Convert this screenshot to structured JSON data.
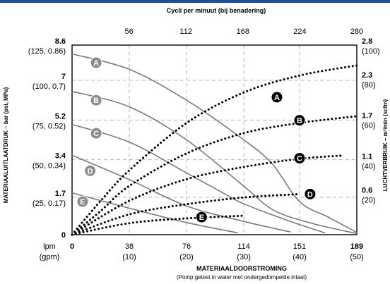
{
  "chart_data": {
    "type": "line",
    "top_axis": {
      "label": "Cycli per minuut (bij benadering)",
      "ticks": [
        "56",
        "112",
        "168",
        "224",
        "280"
      ]
    },
    "x_axis": {
      "label": "MATERIAALDOORSTROMING",
      "sublabel": "(Pomp getest in water met ondergedompelde inlaat)",
      "unit_primary": "lpm",
      "unit_secondary": "(gpm)",
      "range": [
        0,
        189
      ],
      "ticks": [
        {
          "value": 0,
          "primary": "0",
          "secondary": ""
        },
        {
          "value": 38,
          "primary": "38",
          "secondary": "(10)"
        },
        {
          "value": 76,
          "primary": "76",
          "secondary": "(20)"
        },
        {
          "value": 114,
          "primary": "114",
          "secondary": "(30)"
        },
        {
          "value": 151,
          "primary": "151",
          "secondary": "(40)"
        },
        {
          "value": 189,
          "primary": "189",
          "secondary": "(50)"
        }
      ]
    },
    "y_left": {
      "label": "MATERIAALUITLAATDRUK – bar (psi, MPa)",
      "range": [
        0,
        8.6
      ],
      "ticks": [
        {
          "value": 0,
          "primary": "0",
          "secondary": ""
        },
        {
          "value": 1.7,
          "primary": "1.7",
          "secondary": "(25, 0.17)"
        },
        {
          "value": 3.4,
          "primary": "3.4",
          "secondary": "(50, 0.34)"
        },
        {
          "value": 5.2,
          "primary": "5.2",
          "secondary": "(75, 0.52)"
        },
        {
          "value": 7,
          "primary": "7",
          "secondary": "(100, 0.7)"
        },
        {
          "value": 8.6,
          "primary": "8.6",
          "secondary": "(125, 0.86)"
        }
      ]
    },
    "y_right": {
      "label": "LUCHTVERBRUIK – m³/min (scfm)",
      "range": [
        0,
        2.8
      ],
      "ticks": [
        {
          "value": 0.6,
          "primary": "0.6",
          "secondary": "(20)"
        },
        {
          "value": 1.1,
          "primary": "1.1",
          "secondary": "(40)"
        },
        {
          "value": 1.7,
          "primary": "1.7",
          "secondary": "(60)"
        },
        {
          "value": 2.3,
          "primary": "2.3",
          "secondary": "(80)"
        },
        {
          "value": 2.8,
          "primary": "2.8",
          "secondary": "(100)"
        }
      ]
    },
    "grid": true,
    "series": [
      {
        "name": "A",
        "kind": "pressure",
        "axis": "left",
        "points": [
          [
            0,
            8.2
          ],
          [
            38,
            7.5
          ],
          [
            76,
            6.1
          ],
          [
            114,
            4.3
          ],
          [
            133,
            3.2
          ],
          [
            151,
            1.5
          ],
          [
            170,
            0.8
          ],
          [
            189,
            0.1
          ]
        ]
      },
      {
        "name": "B",
        "kind": "pressure",
        "axis": "left",
        "points": [
          [
            0,
            6.5
          ],
          [
            38,
            5.8
          ],
          [
            76,
            4.3
          ],
          [
            114,
            2.2
          ],
          [
            134,
            1.1
          ],
          [
            160,
            0.5
          ],
          [
            189,
            0.05
          ]
        ]
      },
      {
        "name": "C",
        "kind": "pressure",
        "axis": "left",
        "points": [
          [
            0,
            5.0
          ],
          [
            38,
            4.2
          ],
          [
            76,
            2.8
          ],
          [
            100,
            1.9
          ],
          [
            114,
            1.4
          ],
          [
            145,
            0.6
          ],
          [
            168,
            0.08
          ]
        ]
      },
      {
        "name": "D",
        "kind": "pressure",
        "axis": "left",
        "points": [
          [
            0,
            3.6
          ],
          [
            38,
            2.5
          ],
          [
            76,
            1.3
          ],
          [
            114,
            0.6
          ],
          [
            145,
            0.12
          ]
        ]
      },
      {
        "name": "E",
        "kind": "pressure",
        "axis": "left",
        "points": [
          [
            0,
            1.9
          ],
          [
            38,
            1.2
          ],
          [
            76,
            0.55
          ],
          [
            110,
            0.08
          ]
        ]
      },
      {
        "name": "A",
        "kind": "air",
        "axis": "right",
        "points": [
          [
            0,
            0.0
          ],
          [
            19,
            0.5
          ],
          [
            38,
            0.95
          ],
          [
            76,
            1.65
          ],
          [
            114,
            2.1
          ],
          [
            151,
            2.35
          ],
          [
            189,
            2.5
          ]
        ]
      },
      {
        "name": "B",
        "kind": "air",
        "axis": "right",
        "points": [
          [
            0,
            0.0
          ],
          [
            19,
            0.35
          ],
          [
            38,
            0.72
          ],
          [
            76,
            1.2
          ],
          [
            114,
            1.5
          ],
          [
            151,
            1.65
          ],
          [
            189,
            1.75
          ]
        ]
      },
      {
        "name": "C",
        "kind": "air",
        "axis": "right",
        "points": [
          [
            0,
            0.0
          ],
          [
            38,
            0.5
          ],
          [
            76,
            0.82
          ],
          [
            114,
            1.0
          ],
          [
            151,
            1.12
          ],
          [
            180,
            1.17
          ]
        ]
      },
      {
        "name": "D",
        "kind": "air",
        "axis": "right",
        "points": [
          [
            0,
            0.0
          ],
          [
            38,
            0.3
          ],
          [
            76,
            0.45
          ],
          [
            114,
            0.55
          ],
          [
            151,
            0.6
          ]
        ]
      },
      {
        "name": "E",
        "kind": "air",
        "axis": "right",
        "points": [
          [
            0,
            0.0
          ],
          [
            38,
            0.17
          ],
          [
            76,
            0.24
          ],
          [
            114,
            0.28
          ]
        ]
      }
    ],
    "badges": [
      {
        "letter": "A",
        "kind": "pressure",
        "x": 16,
        "y": 7.8
      },
      {
        "letter": "B",
        "kind": "pressure",
        "x": 16,
        "y": 6.1
      },
      {
        "letter": "C",
        "kind": "pressure",
        "x": 16,
        "y": 4.6
      },
      {
        "letter": "D",
        "kind": "pressure",
        "x": 12,
        "y": 2.9
      },
      {
        "letter": "E",
        "kind": "pressure",
        "x": 7,
        "y": 1.5
      },
      {
        "letter": "A",
        "kind": "air",
        "x": 136,
        "y": 2.03
      },
      {
        "letter": "B",
        "kind": "air",
        "x": 151,
        "y": 1.69
      },
      {
        "letter": "C",
        "kind": "air",
        "x": 151,
        "y": 1.13
      },
      {
        "letter": "D",
        "kind": "air",
        "x": 158,
        "y": 0.6
      },
      {
        "letter": "E",
        "kind": "air",
        "x": 86,
        "y": 0.26
      }
    ],
    "colors": {
      "pressure_line": "#7a7a7a",
      "air_line": "#000000",
      "grid": "#b4b4b4",
      "badge_pressure": "#8c8c8c",
      "badge_air": "#000000",
      "top_bar": "#1f4e8c"
    }
  }
}
